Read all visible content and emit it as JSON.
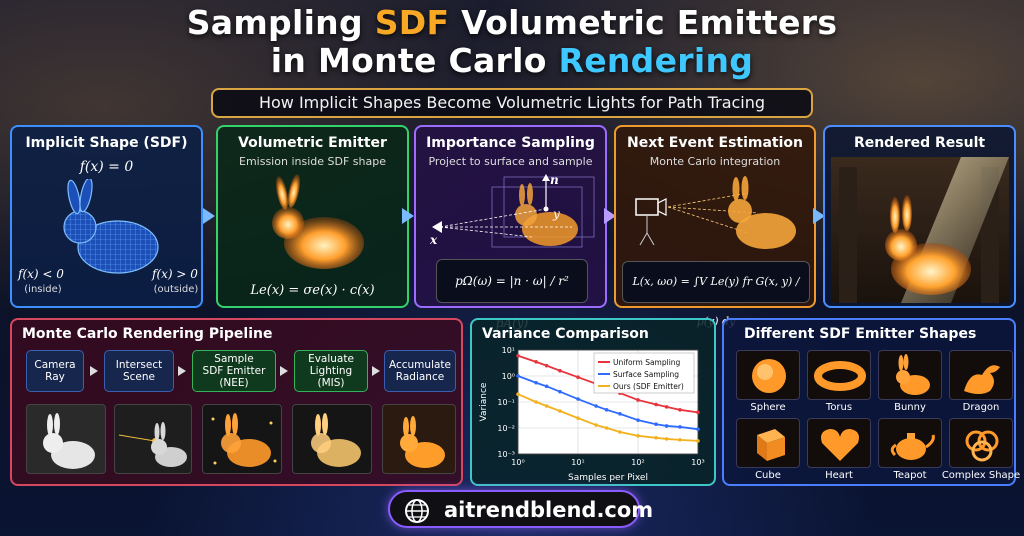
{
  "header": {
    "title_line1_a": "Sampling ",
    "title_line1_b": "SDF",
    "title_line1_c": " Volumetric Emitters",
    "title_line2_a": "in Monte Carlo ",
    "title_line2_b": "Rendering",
    "subtitle": "How Implicit Shapes Become Volumetric Lights for Path Tracing"
  },
  "panels": {
    "implicit": {
      "title": "Implicit Shape (SDF)",
      "eq_zero": "f(x) = 0",
      "eq_inside": "f(x) < 0",
      "inside_label": "(inside)",
      "eq_outside": "f(x) > 0",
      "outside_label": "(outside)"
    },
    "emitter": {
      "title": "Volumetric Emitter",
      "subtitle": "Emission inside SDF shape",
      "formula": "Le(x) = σe(x) · c(x)"
    },
    "importance": {
      "title": "Importance Sampling",
      "subtitle": "Project to surface and sample",
      "label_n": "n",
      "label_y": "y",
      "label_x": "x",
      "formula": "pΩ(ω) = |n · ω| / r² pA(y)"
    },
    "nee": {
      "title": "Next Event Estimation",
      "subtitle": "Monte Carlo integration",
      "formula": "L(x, ωo) = ∫V Le(y) fr G(x, y) / p(y) dy"
    },
    "result": {
      "title": "Rendered Result"
    }
  },
  "pipeline": {
    "title": "Monte Carlo Rendering Pipeline",
    "steps": [
      {
        "line1": "Camera",
        "line2": "Ray",
        "line3": ""
      },
      {
        "line1": "Intersect",
        "line2": "Scene",
        "line3": ""
      },
      {
        "line1": "Sample",
        "line2": "SDF Emitter",
        "line3": "(NEE)"
      },
      {
        "line1": "Evaluate",
        "line2": "Lighting",
        "line3": "(MIS)"
      },
      {
        "line1": "Accumulate",
        "line2": "Radiance",
        "line3": ""
      }
    ]
  },
  "variance": {
    "title": "Variance Comparison"
  },
  "chart_data": {
    "type": "line",
    "title": "",
    "xlabel": "Samples per Pixel",
    "ylabel": "Variance",
    "xscale": "log",
    "yscale": "log",
    "xlim": [
      1,
      1000
    ],
    "ylim": [
      0.001,
      10
    ],
    "x_ticks": [
      "10⁰",
      "10¹",
      "10²",
      "10³"
    ],
    "y_ticks": [
      "10¹",
      "10⁰",
      "10⁻¹",
      "10⁻²",
      "10⁻³"
    ],
    "legend_position": "top-right",
    "grid": true,
    "x": [
      1,
      2,
      3,
      5,
      10,
      20,
      30,
      50,
      100,
      200,
      300,
      500,
      1000
    ],
    "series": [
      {
        "name": "Uniform Sampling",
        "color": "#e8333c",
        "values": [
          6,
          3.5,
          2.5,
          1.6,
          0.9,
          0.5,
          0.35,
          0.22,
          0.12,
          0.08,
          0.065,
          0.05,
          0.04
        ]
      },
      {
        "name": "Surface Sampling",
        "color": "#2f6bff",
        "values": [
          1.0,
          0.55,
          0.4,
          0.25,
          0.13,
          0.07,
          0.05,
          0.035,
          0.02,
          0.014,
          0.012,
          0.011,
          0.009
        ]
      },
      {
        "name": "Ours (SDF Emitter)",
        "color": "#f2b21e",
        "values": [
          0.2,
          0.1,
          0.07,
          0.045,
          0.024,
          0.013,
          0.01,
          0.007,
          0.005,
          0.0042,
          0.0038,
          0.0035,
          0.0032
        ]
      }
    ]
  },
  "shapes": {
    "title": "Different SDF Emitter Shapes",
    "items": [
      "Sphere",
      "Torus",
      "Bunny",
      "Dragon",
      "Cube",
      "Heart",
      "Teapot",
      "Complex Shape"
    ]
  },
  "footer": {
    "site": "aitrendblend.com",
    "icon": "globe-icon"
  }
}
